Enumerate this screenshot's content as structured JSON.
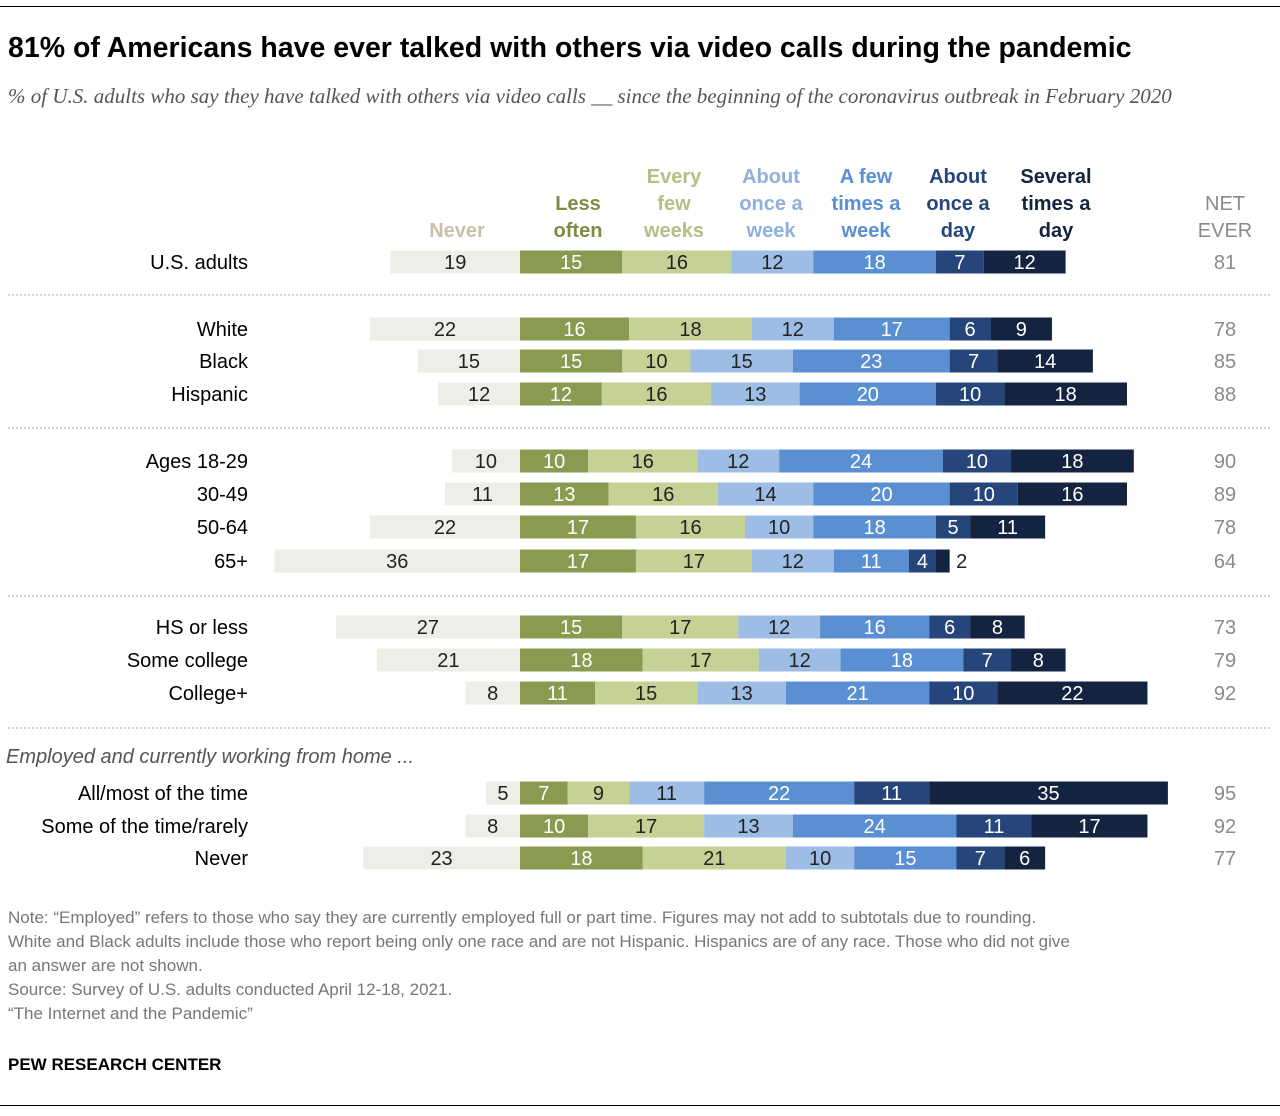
{
  "title": "81% of Americans have ever talked with others via video calls during the pandemic",
  "subtitle": "% of U.S. adults who say they have talked with others via video calls __ since the beginning of the coronavirus outbreak in February 2020",
  "chart_data": {
    "type": "bar",
    "orientation": "horizontal",
    "stacked": "diverging",
    "categories": [
      "U.S. adults",
      "White",
      "Black",
      "Hispanic",
      "Ages 18-29",
      "30-49",
      "50-64",
      "65+",
      "HS or less",
      "Some college",
      "College+",
      "All/most of the time",
      "Some of the time/rarely",
      "Never"
    ],
    "series": [
      {
        "name": "Never",
        "color": "#eeeee8",
        "values": [
          19,
          22,
          15,
          12,
          10,
          11,
          22,
          36,
          27,
          21,
          8,
          5,
          8,
          23
        ]
      },
      {
        "name": "Less often",
        "color": "#8a9a50",
        "values": [
          15,
          16,
          15,
          12,
          10,
          13,
          17,
          17,
          15,
          18,
          11,
          7,
          10,
          18
        ]
      },
      {
        "name": "Every few weeks",
        "color": "#c6d196",
        "values": [
          16,
          18,
          10,
          16,
          16,
          16,
          16,
          17,
          17,
          17,
          15,
          9,
          17,
          21
        ]
      },
      {
        "name": "About once a week",
        "color": "#9dbde5",
        "values": [
          12,
          12,
          15,
          13,
          12,
          14,
          10,
          12,
          12,
          12,
          13,
          11,
          13,
          10
        ]
      },
      {
        "name": "A few times a week",
        "color": "#5a8fd2",
        "values": [
          18,
          17,
          23,
          20,
          24,
          20,
          18,
          11,
          16,
          18,
          21,
          22,
          24,
          15
        ]
      },
      {
        "name": "About once a day",
        "color": "#26457a",
        "values": [
          7,
          6,
          7,
          10,
          10,
          10,
          5,
          4,
          6,
          7,
          10,
          11,
          11,
          7
        ]
      },
      {
        "name": "Several times a day",
        "color": "#142340",
        "values": [
          12,
          9,
          14,
          18,
          18,
          16,
          11,
          2,
          8,
          8,
          22,
          35,
          17,
          6
        ]
      }
    ],
    "net_ever": {
      "name": "NET EVER",
      "values": [
        81,
        78,
        85,
        88,
        90,
        89,
        78,
        64,
        73,
        79,
        92,
        95,
        92,
        77
      ]
    },
    "groups": [
      {
        "label": "",
        "rows": [
          0
        ]
      },
      {
        "label": "",
        "rows": [
          1,
          2,
          3
        ]
      },
      {
        "label": "",
        "rows": [
          4,
          5,
          6,
          7
        ]
      },
      {
        "label": "",
        "rows": [
          8,
          9,
          10
        ]
      },
      {
        "label": "Employed and currently working from home ...",
        "rows": [
          11,
          12,
          13
        ]
      }
    ],
    "legend_placement": "top",
    "header_label_colors": [
      "#c8c0a8",
      "#7d8c45",
      "#b3bf85",
      "#8fb0dc",
      "#5a8fd2",
      "#26457a",
      "#142340"
    ]
  },
  "notes": [
    "Note: “Employed” refers to those who say they are currently employed full or part time. Figures may not add to subtotals due to rounding.",
    "White and Black adults include those who report being only one race and are not Hispanic. Hispanics are of any race. Those who did not give",
    "an answer are not shown.",
    "Source: Survey of U.S. adults conducted April 12-18, 2021.",
    "“The Internet and the Pandemic”"
  ],
  "brand": "PEW RESEARCH CENTER"
}
